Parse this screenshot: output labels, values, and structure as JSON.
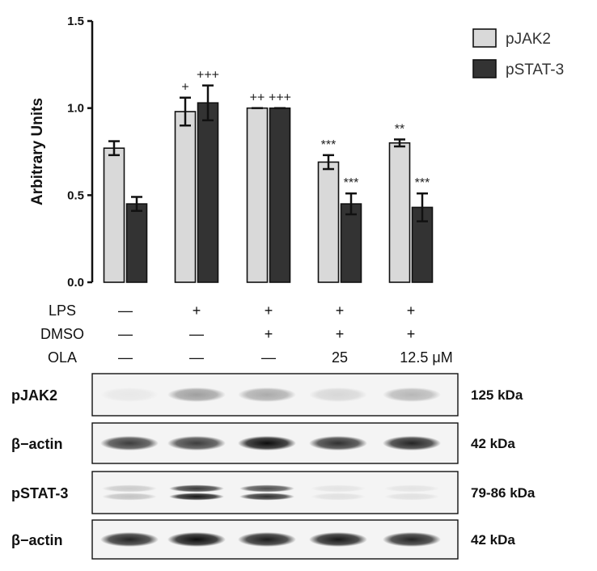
{
  "chart_data": {
    "type": "bar",
    "ylabel": "Arbitrary Units",
    "ylim": [
      0,
      1.5
    ],
    "yticks": [
      "0.0",
      "0.5",
      "1.0",
      "1.5"
    ],
    "legend_position": "top-right",
    "series": [
      {
        "name": "pJAK2",
        "color": "#d9d9d9",
        "values": [
          0.77,
          0.98,
          1.0,
          0.69,
          0.8
        ],
        "errors": [
          0.04,
          0.08,
          0.0,
          0.04,
          0.02
        ],
        "annotations": [
          "",
          "+",
          "++",
          "***",
          "**"
        ]
      },
      {
        "name": "pSTAT-3",
        "color": "#333333",
        "values": [
          0.45,
          1.03,
          1.0,
          0.45,
          0.43
        ],
        "errors": [
          0.04,
          0.1,
          0.0,
          0.06,
          0.08
        ],
        "annotations": [
          "",
          "+++",
          "+++",
          "***",
          "***"
        ]
      }
    ]
  },
  "conditions": [
    {
      "label": "LPS",
      "values": [
        "—",
        "+",
        "+",
        "+",
        "+"
      ]
    },
    {
      "label": "DMSO",
      "values": [
        "—",
        "—",
        "+",
        "+",
        "+"
      ]
    },
    {
      "label": "OLA",
      "values": [
        "—",
        "—",
        "—",
        "25",
        "12.5 μM"
      ]
    }
  ],
  "blots": [
    {
      "label": "pJAK2",
      "kda": "125 kDa",
      "bands": [
        0.05,
        0.35,
        0.3,
        0.12,
        0.25
      ],
      "double": false
    },
    {
      "label": "β−actin",
      "kda": "42 kDa",
      "bands": [
        0.75,
        0.75,
        0.95,
        0.8,
        0.85
      ],
      "double": false
    },
    {
      "label": "pSTAT-3",
      "kda": "79-86 kDa",
      "bands": [
        0.2,
        0.9,
        0.8,
        0.08,
        0.08
      ],
      "double": true
    },
    {
      "label": "β−actin",
      "kda": "42 kDa",
      "bands": [
        0.85,
        0.95,
        0.88,
        0.9,
        0.85
      ],
      "double": false
    }
  ]
}
